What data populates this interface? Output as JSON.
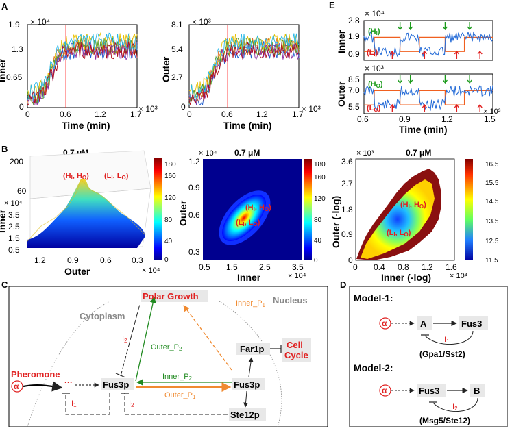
{
  "panels": {
    "a": "A",
    "b": "B",
    "c": "C",
    "d": "D",
    "e": "E"
  },
  "chart_data": [
    {
      "id": "A-left",
      "type": "line",
      "ylabel": "Inner",
      "xlabel": "Time (min)",
      "x_exponent": "× 10³",
      "y_exponent": "× 10⁴",
      "xticks": [
        "0",
        "0.6",
        "1.2",
        "1.7"
      ],
      "yticks": [
        "0",
        "0.65",
        "1.3",
        "1.9"
      ],
      "xlim": [
        0,
        1.7
      ],
      "ylim": [
        0,
        1.9
      ],
      "vline_x": 0.6,
      "series_colors": [
        "#1f5fd0",
        "#e07020",
        "#e8c000",
        "#8a2aa0",
        "#5aa02c",
        "#28b8e8",
        "#b01020"
      ]
    },
    {
      "id": "A-right",
      "type": "line",
      "ylabel": "Outer",
      "xlabel": "Time (min)",
      "x_exponent": "× 10³",
      "y_exponent": "× 10³",
      "xticks": [
        "0",
        "0.6",
        "1.2",
        "1.7"
      ],
      "yticks": [
        "0",
        "2.7",
        "5.4",
        "8.1"
      ],
      "xlim": [
        0,
        1.7
      ],
      "ylim": [
        0,
        8.1
      ],
      "vline_x": 0.6
    },
    {
      "id": "B-left",
      "type": "surface3d",
      "title": "0.7 μM",
      "zlabel": "Inner",
      "xlabel": "Outer",
      "z_exponent": "× 10⁴",
      "x_exponent": "× 10⁴",
      "zticks": [
        "200",
        "60"
      ],
      "yticks": [
        "3.5",
        "2.5",
        "1.5",
        "0.5"
      ],
      "xticks": [
        "1.2",
        "0.9",
        "0.6",
        "0.3"
      ],
      "colorbar_ticks": [
        "180",
        "160",
        "120",
        "80",
        "40",
        "0"
      ],
      "annotations": [
        "(H",
        "I",
        ", H",
        "O",
        ")",
        "(L",
        "I",
        ", L",
        "O",
        ")"
      ]
    },
    {
      "id": "B-middle",
      "type": "heatmap",
      "title": "0.7 μM",
      "ylabel": "Outer",
      "xlabel": "Inner",
      "y_exponent": "× 10⁴",
      "x_exponent": "× 10⁴",
      "yticks": [
        "1.2",
        "0.9",
        "0.6",
        "0.3"
      ],
      "xticks": [
        "0.5",
        "1.5",
        "2.5",
        "3.5"
      ],
      "colorbar_ticks": [
        "180",
        "160",
        "120",
        "80",
        "40",
        "0"
      ]
    },
    {
      "id": "B-right",
      "type": "heatmap",
      "title": "0.7 μM",
      "ylabel": "Outer (-log)",
      "xlabel": "Inner (-log)",
      "y_exponent": "× 10³",
      "x_exponent": "× 10³",
      "yticks": [
        "3.6",
        "2.7",
        "1.8",
        "0.9",
        "0"
      ],
      "xticks": [
        "0",
        "0.4",
        "0.8",
        "1.2",
        "1.6"
      ],
      "colorbar_ticks": [
        "16.5",
        "15.5",
        "14.5",
        "13.5",
        "12.5",
        "11.5"
      ]
    },
    {
      "id": "E-top",
      "type": "line",
      "ylabel": "Inner",
      "y_exponent": "× 10⁴",
      "yticks": [
        "2.8",
        "1.9",
        "0.9"
      ],
      "labels": {
        "high": "(H",
        "high_sub": "I",
        "low": "(L",
        "low_sub": "I",
        "close": ")"
      }
    },
    {
      "id": "E-bottom",
      "type": "line",
      "ylabel": "Outer",
      "y_exponent": "× 10³",
      "yticks": [
        "8.5",
        "7.0",
        "5.5"
      ],
      "xticks": [
        "0.6",
        "0.9",
        "1.2",
        "1.5"
      ],
      "xlabel": "Time (min)",
      "x_exponent": "× 10³",
      "labels": {
        "high": "(H",
        "high_sub": "O",
        "low": "(L",
        "low_sub": "O",
        "close": ")"
      }
    }
  ],
  "diagram_c": {
    "cytoplasm": "Cytoplasm",
    "nucleus": "Nucleus",
    "polar_growth": "Polar Growth",
    "cell_cycle_1": "Cell",
    "cell_cycle_2": "Cycle",
    "pheromone": "Pheromone",
    "alpha": "α",
    "fus3p_cyto": "Fus3p",
    "fus3p_nuc": "Fus3p",
    "far1p": "Far1p",
    "ste12p": "Ste12p",
    "dots": "···",
    "inner_p1": "Inner_P",
    "inner_p2": "Inner_P",
    "outer_p1": "Outer_P",
    "outer_p2": "Outer_P",
    "sub1": "1",
    "sub2": "2",
    "i": "I"
  },
  "diagram_d": {
    "model1": "Model-1:",
    "model2": "Model-2:",
    "alpha": "α",
    "a": "A",
    "b": "B",
    "fus3": "Fus3",
    "i": "I",
    "sub1": "1",
    "sub2": "2",
    "gpa": "(Gpa1/Sst2)",
    "msg": "(Msg5/Ste12)"
  }
}
